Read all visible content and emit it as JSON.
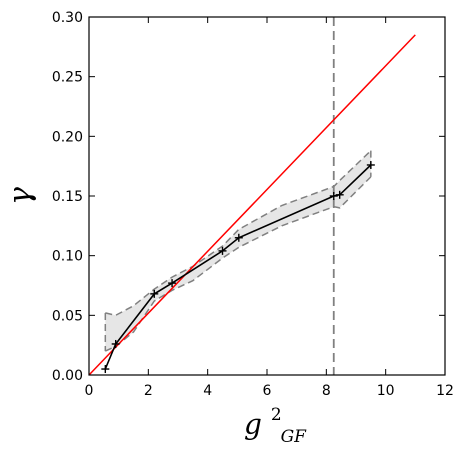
{
  "chart_data": {
    "type": "line",
    "title": "",
    "xlabel": {
      "main": "g",
      "sup": "2",
      "sub": "GF"
    },
    "ylabel": "γ",
    "xlim": [
      0,
      12
    ],
    "ylim": [
      0,
      0.3
    ],
    "xticks": [
      0,
      2,
      4,
      6,
      8,
      10,
      12
    ],
    "yticks": [
      0.0,
      0.05,
      0.1,
      0.15,
      0.2,
      0.25,
      0.3
    ],
    "xtick_labels": [
      "0",
      "2",
      "4",
      "6",
      "8",
      "10",
      "12"
    ],
    "ytick_labels": [
      "0.00",
      "0.05",
      "0.10",
      "0.15",
      "0.20",
      "0.25",
      "0.30"
    ],
    "grid": false,
    "legend": "none",
    "series": [
      {
        "kind": "line-with-markers",
        "color": "#000000",
        "marker": "plus",
        "x": [
          0.55,
          0.9,
          2.2,
          2.8,
          4.5,
          5.05,
          8.25,
          8.45,
          9.5
        ],
        "y": [
          0.005,
          0.026,
          0.068,
          0.077,
          0.104,
          0.115,
          0.15,
          0.151,
          0.176
        ]
      },
      {
        "kind": "reference-line",
        "color": "#ff0000",
        "x": [
          0,
          11.0
        ],
        "y": [
          0,
          0.285
        ]
      }
    ],
    "band": {
      "fill": "#e6e6e6",
      "edge_color": "#808080",
      "edge_style": "dashed",
      "x": [
        0.55,
        0.9,
        1.5,
        2.2,
        2.8,
        3.5,
        4.5,
        5.05,
        6.5,
        8.25,
        8.45,
        9.5
      ],
      "upper": [
        0.052,
        0.05,
        0.058,
        0.072,
        0.082,
        0.091,
        0.108,
        0.122,
        0.142,
        0.158,
        0.163,
        0.188
      ],
      "lower": [
        0.02,
        0.024,
        0.036,
        0.062,
        0.071,
        0.079,
        0.098,
        0.107,
        0.125,
        0.141,
        0.14,
        0.166
      ]
    },
    "vline": {
      "x": 8.25,
      "color": "#808080",
      "style": "dashed"
    }
  }
}
